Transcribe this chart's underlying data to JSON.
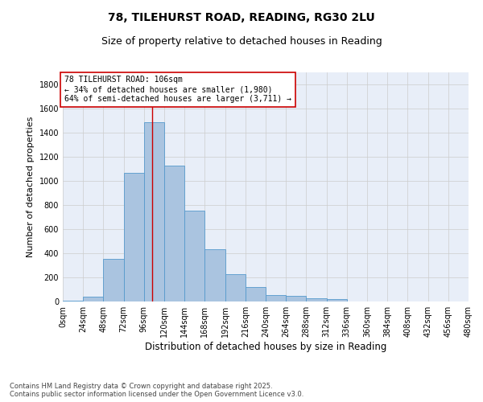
{
  "title_line1": "78, TILEHURST ROAD, READING, RG30 2LU",
  "title_line2": "Size of property relative to detached houses in Reading",
  "xlabel": "Distribution of detached houses by size in Reading",
  "ylabel": "Number of detached properties",
  "bin_edges": [
    0,
    24,
    48,
    72,
    96,
    120,
    144,
    168,
    192,
    216,
    240,
    264,
    288,
    312,
    336,
    360,
    384,
    408,
    432,
    456,
    480
  ],
  "bar_heights": [
    10,
    38,
    355,
    1070,
    1490,
    1125,
    755,
    435,
    230,
    120,
    52,
    47,
    28,
    18,
    0,
    0,
    0,
    0,
    0,
    0
  ],
  "bar_color": "#aac4e0",
  "bar_edge_color": "#5599cc",
  "vline_x": 106,
  "vline_color": "#cc0000",
  "annotation_box_text": "78 TILEHURST ROAD: 106sqm\n← 34% of detached houses are smaller (1,980)\n64% of semi-detached houses are larger (3,711) →",
  "ylim": [
    0,
    1900
  ],
  "yticks": [
    0,
    200,
    400,
    600,
    800,
    1000,
    1200,
    1400,
    1600,
    1800
  ],
  "xlim": [
    0,
    480
  ],
  "grid_color": "#cccccc",
  "background_color": "#e8eef8",
  "footer_text": "Contains HM Land Registry data © Crown copyright and database right 2025.\nContains public sector information licensed under the Open Government Licence v3.0.",
  "title_fontsize": 10,
  "subtitle_fontsize": 9,
  "xlabel_fontsize": 8.5,
  "ylabel_fontsize": 8,
  "tick_fontsize": 7,
  "footer_fontsize": 6,
  "annotation_fontsize": 7
}
